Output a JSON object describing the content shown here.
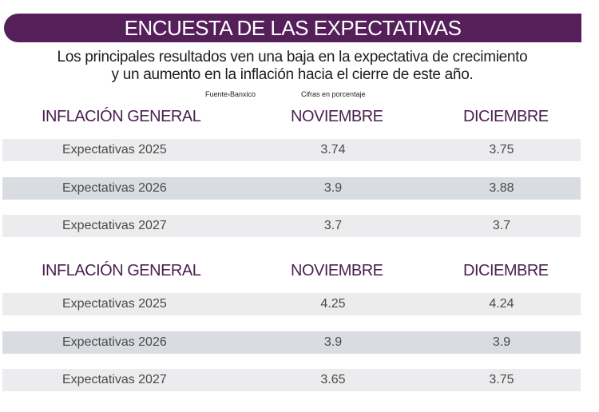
{
  "title": "ENCUESTA DE LAS EXPECTATIVAS",
  "subtitle": [
    "Los principales resultados ven una baja en la expectativa de crecimiento",
    "y un aumento en la inflación hacia el cierre de este año."
  ],
  "source": "Fuente›Banxico",
  "units": "Cifras en porcentaje",
  "colors": {
    "banner": "#55205a",
    "header_text": "#4a1f4f",
    "row": "#ececee",
    "row_alt": "#d9dce0"
  },
  "chart_data": [
    {
      "type": "table",
      "columns": [
        "INFLACIÓN GENERAL",
        "NOVIEMBRE",
        "DICIEMBRE"
      ],
      "rows": [
        [
          "Expectativas 2025",
          "3.74",
          "3.75"
        ],
        [
          "Expectativas 2026",
          "3.9",
          "3.88"
        ],
        [
          "Expectativas 2027",
          "3.7",
          "3.7"
        ]
      ]
    },
    {
      "type": "table",
      "columns": [
        "INFLACIÓN GENERAL",
        "NOVIEMBRE",
        "DICIEMBRE"
      ],
      "rows": [
        [
          "Expectativas 2025",
          "4.25",
          "4.24"
        ],
        [
          "Expectativas 2026",
          "3.9",
          "3.9"
        ],
        [
          "Expectativas 2027",
          "3.65",
          "3.75"
        ]
      ]
    }
  ]
}
